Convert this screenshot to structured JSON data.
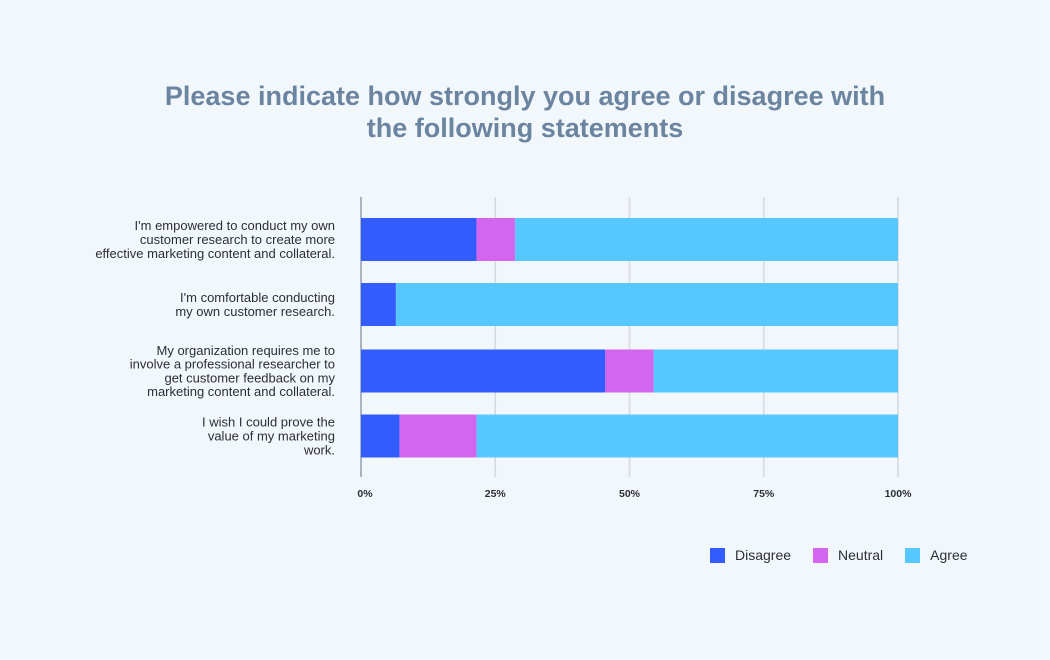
{
  "chart_data": {
    "type": "bar",
    "orientation": "horizontal",
    "stacked": true,
    "title": "Please indicate how strongly you agree or disagree with the following statements",
    "title_lines": [
      "Please indicate how strongly you agree or disagree with",
      "the following statements"
    ],
    "categories": [
      "I'm empowered to conduct my own customer research to create more effective marketing content and collateral.",
      "I'm comfortable conducting my own customer research.",
      "My organization requires me to involve a professional researcher to get customer feedback on my marketing content and collateral.",
      "I wish I could prove the value of my marketing work."
    ],
    "category_lines": [
      [
        "I'm empowered to conduct my own",
        "customer research to create more",
        "effective marketing content and collateral."
      ],
      [
        "I'm comfortable conducting",
        "my own customer research."
      ],
      [
        "My organization requires me to",
        "involve a professional researcher to",
        "get customer feedback on my",
        "marketing content and collateral."
      ],
      [
        "I wish I could prove the",
        "value of my marketing",
        "work."
      ]
    ],
    "series": [
      {
        "name": "Disagree",
        "color": "#335cff",
        "values": [
          21.5,
          6.5,
          45.5,
          7.2
        ]
      },
      {
        "name": "Neutral",
        "color": "#d266ee",
        "values": [
          7.2,
          0,
          9,
          14.3
        ]
      },
      {
        "name": "Agree",
        "color": "#57c8ff",
        "values": [
          71.3,
          93.5,
          45.5,
          78.5
        ]
      }
    ],
    "xlim": [
      0,
      100
    ],
    "xticks": [
      0,
      25,
      50,
      75,
      100
    ],
    "xtick_labels": [
      "0%",
      "25%",
      "50%",
      "75%",
      "100%"
    ],
    "xlabel": "",
    "ylabel": "",
    "grid": true,
    "legend_position": "bottom-right"
  }
}
